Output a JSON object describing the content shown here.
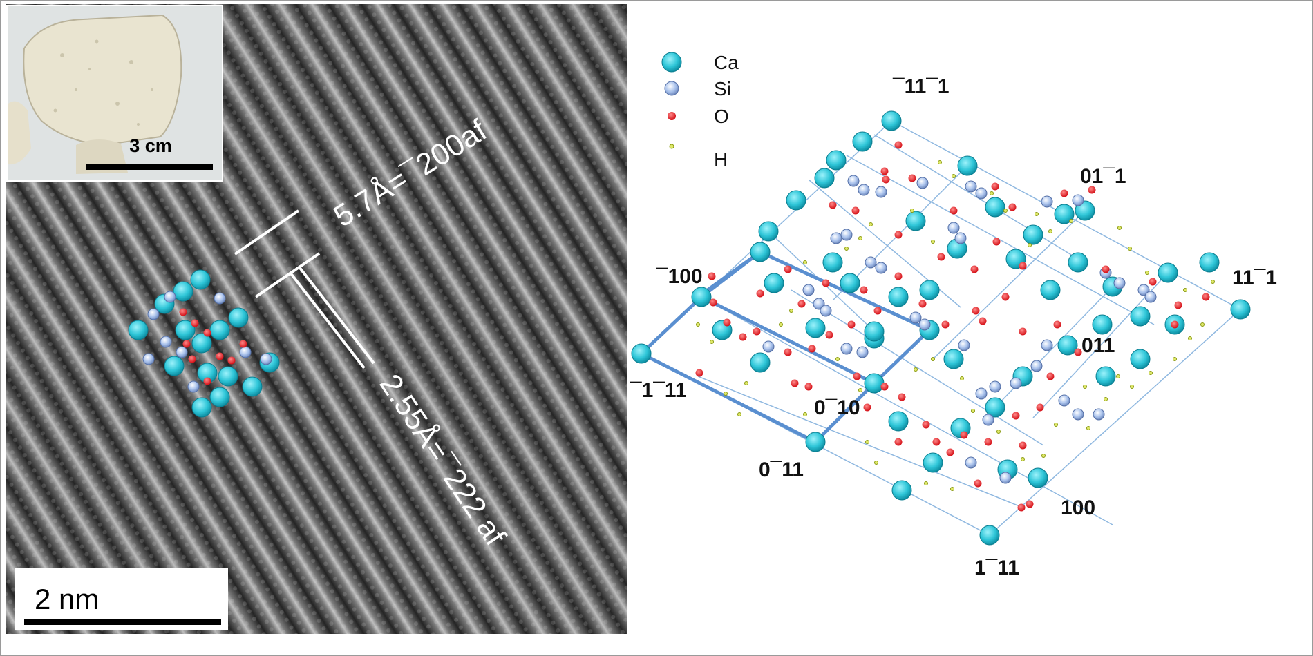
{
  "inset_photo": {
    "scale_label": "3 cm"
  },
  "tem_image": {
    "scale_label": "2 nm",
    "spacing_upper": "5.7Å=¯200af",
    "spacing_lower": "2.55Å=¯222 af"
  },
  "legend": {
    "items": [
      {
        "label": "Ca",
        "color": "#2fc6d8"
      },
      {
        "label": "Si",
        "color": "#a9c2ec"
      },
      {
        "label": "O",
        "color": "#e8141c"
      },
      {
        "label": "H",
        "color": "#c8d62a"
      }
    ]
  },
  "lattice_labels": {
    "top": "¯11¯1",
    "upper_right": "01¯1",
    "right": "11¯1",
    "left_upper": "¯100",
    "left": "¯1¯11",
    "center_right": "011",
    "center": "0¯10",
    "bottom_left": "0¯11",
    "bottom_right_mid": "100",
    "bottom": "1¯11"
  }
}
